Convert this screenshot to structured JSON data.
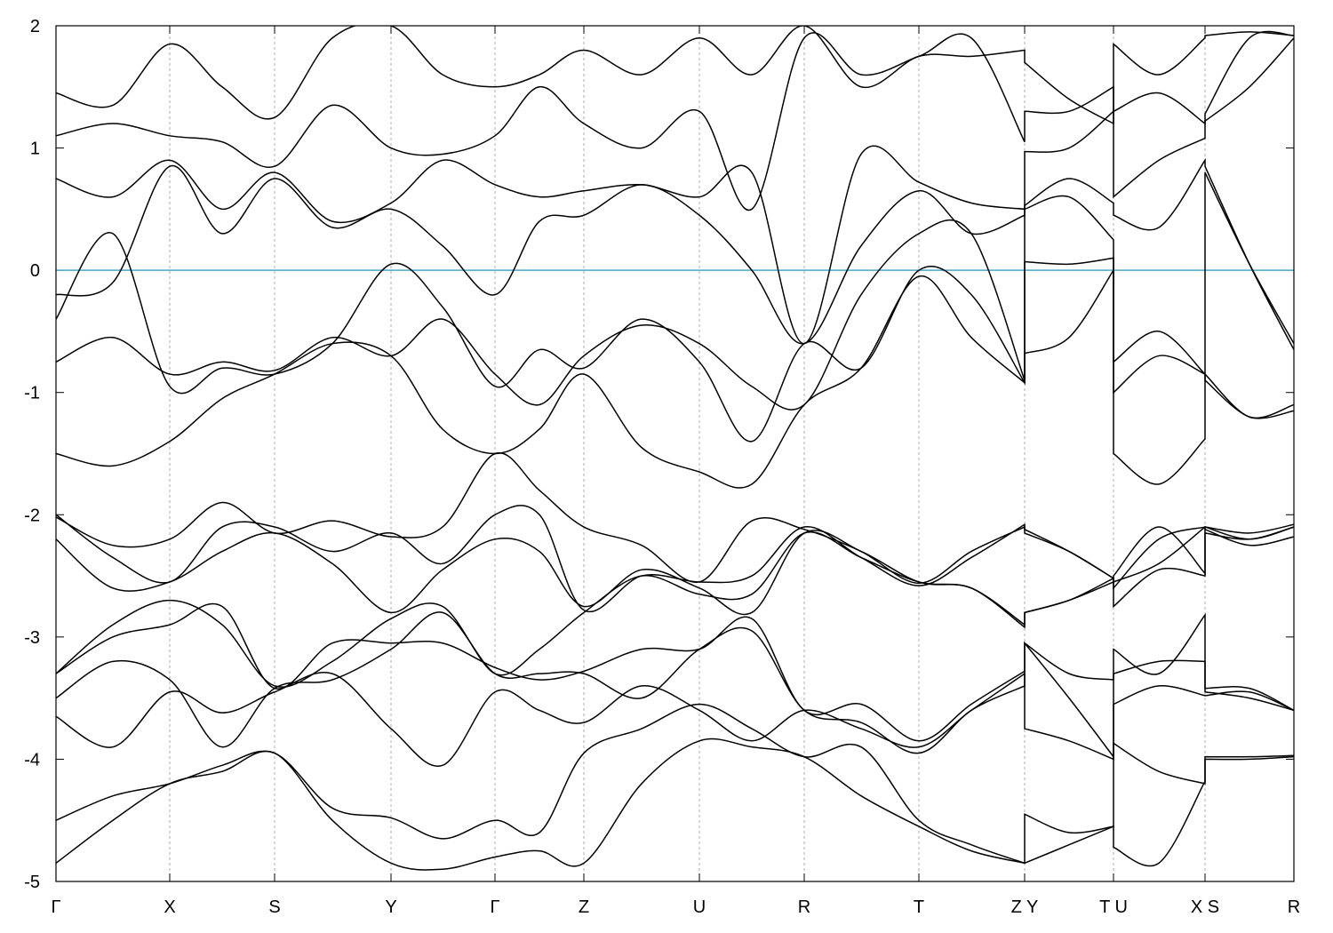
{
  "chart_data": {
    "type": "line",
    "x": [
      0,
      64,
      128,
      187,
      246,
      311,
      377,
      435,
      494,
      544,
      594,
      659,
      724,
      783,
      842,
      906,
      971,
      1030,
      1090,
      1090,
      1140,
      1190,
      1190,
      1241,
      1293,
      1293,
      1343,
      1393
    ],
    "xlim": [
      0,
      1393
    ],
    "xticks": [
      {
        "value": 0,
        "label": "Γ"
      },
      {
        "value": 128,
        "label": "X"
      },
      {
        "value": 246,
        "label": "S"
      },
      {
        "value": 377,
        "label": "Y"
      },
      {
        "value": 494,
        "label": "Γ"
      },
      {
        "value": 594,
        "label": "Z"
      },
      {
        "value": 724,
        "label": "U"
      },
      {
        "value": 842,
        "label": "R"
      },
      {
        "value": 971,
        "label": "T"
      },
      {
        "value": 1090,
        "label": "Z Y"
      },
      {
        "value": 1190,
        "label": "T U"
      },
      {
        "value": 1293,
        "label": "X S"
      },
      {
        "value": 1393,
        "label": "R"
      }
    ],
    "ylim": [
      -5,
      2
    ],
    "yticks": [
      2,
      1,
      0,
      -1,
      -2,
      -3,
      -4,
      -5
    ],
    "fermi_level": 0,
    "fermi_color": "#4aa8c8",
    "grid": true,
    "series": [
      {
        "color": "#000000",
        "values": [
          -4.85,
          -4.5,
          -4.2,
          -4.1,
          -3.95,
          -4.5,
          -4.85,
          -4.9,
          -4.8,
          -4.75,
          -4.85,
          -4.2,
          -3.85,
          -3.9,
          -3.98,
          -4.3,
          -4.55,
          -4.75,
          -4.85,
          -4.85,
          -4.7,
          -4.55,
          -4.72,
          -4.85,
          -4.18,
          -4.0,
          -4.0,
          -3.98
        ]
      },
      {
        "color": "#000000",
        "values": [
          -4.5,
          -4.3,
          -4.2,
          -4.05,
          -3.95,
          -4.4,
          -4.48,
          -4.65,
          -4.5,
          -4.6,
          -3.95,
          -3.75,
          -3.55,
          -3.75,
          -3.98,
          -3.9,
          -4.5,
          -4.7,
          -4.85,
          -4.45,
          -4.6,
          -4.55,
          -3.87,
          -4.1,
          -4.2,
          -3.98,
          -3.98,
          -3.97
        ]
      },
      {
        "color": "#000000",
        "values": [
          -3.65,
          -3.9,
          -3.45,
          -3.62,
          -3.45,
          -3.3,
          -3.75,
          -4.05,
          -3.45,
          -3.6,
          -3.7,
          -3.4,
          -3.6,
          -3.85,
          -3.6,
          -3.75,
          -3.9,
          -3.6,
          -3.3,
          -3.75,
          -3.85,
          -4.0,
          -3.55,
          -3.4,
          -3.48,
          -3.48,
          -3.45,
          -3.6
        ]
      },
      {
        "color": "#000000",
        "values": [
          -3.5,
          -3.2,
          -3.35,
          -3.9,
          -3.42,
          -3.35,
          -3.1,
          -2.8,
          -3.3,
          -3.3,
          -3.3,
          -3.5,
          -3.1,
          -2.95,
          -3.6,
          -3.7,
          -3.95,
          -3.6,
          -3.4,
          -3.05,
          -3.5,
          -3.98,
          -3.3,
          -3.2,
          -3.2,
          -3.42,
          -3.42,
          -3.6
        ]
      },
      {
        "color": "#000000",
        "values": [
          -3.3,
          -3.0,
          -2.9,
          -2.75,
          -3.42,
          -3.05,
          -3.05,
          -3.05,
          -3.25,
          -3.35,
          -3.28,
          -3.1,
          -3.1,
          -2.85,
          -3.6,
          -3.55,
          -3.85,
          -3.55,
          -3.28,
          -3.05,
          -3.3,
          -3.35,
          -3.1,
          -3.3,
          -2.82,
          -3.45,
          -3.5,
          -3.6
        ]
      },
      {
        "color": "#000000",
        "values": [
          -3.3,
          -2.9,
          -2.7,
          -2.9,
          -3.4,
          -3.2,
          -2.85,
          -2.75,
          -3.3,
          -3.1,
          -2.8,
          -2.5,
          -2.65,
          -2.65,
          -2.15,
          -2.35,
          -2.55,
          -2.6,
          -2.9,
          -2.8,
          -2.7,
          -2.55,
          -2.75,
          -2.45,
          -2.5,
          -2.15,
          -2.2,
          -2.1
        ]
      },
      {
        "color": "#000000",
        "values": [
          -2.2,
          -2.6,
          -2.55,
          -2.3,
          -2.15,
          -2.4,
          -2.8,
          -2.45,
          -2.2,
          -2.3,
          -2.75,
          -2.45,
          -2.6,
          -2.8,
          -2.15,
          -2.3,
          -2.55,
          -2.6,
          -2.92,
          -2.8,
          -2.7,
          -2.52,
          -2.6,
          -2.2,
          -2.1,
          -2.12,
          -2.25,
          -2.18
        ]
      },
      {
        "color": "#000000",
        "values": [
          -2.0,
          -2.35,
          -2.55,
          -2.1,
          -2.1,
          -2.3,
          -2.15,
          -2.4,
          -2.0,
          -2.0,
          -2.78,
          -2.5,
          -2.55,
          -2.5,
          -2.1,
          -2.35,
          -2.58,
          -2.35,
          -2.08,
          -2.15,
          -2.3,
          -2.52,
          -2.55,
          -2.4,
          -2.1,
          -2.1,
          -2.2,
          -2.1
        ]
      },
      {
        "color": "#000000",
        "values": [
          -2.02,
          -2.25,
          -2.2,
          -1.9,
          -2.15,
          -2.05,
          -2.18,
          -2.1,
          -1.5,
          -1.8,
          -2.1,
          -2.25,
          -2.55,
          -2.05,
          -2.12,
          -2.3,
          -2.56,
          -2.3,
          -2.1,
          -2.12,
          -2.3,
          -2.52,
          -2.5,
          -2.1,
          -2.48,
          -2.1,
          -2.15,
          -2.08
        ]
      },
      {
        "color": "#000000",
        "values": [
          -1.5,
          -1.6,
          -1.4,
          -1.05,
          -0.85,
          -0.6,
          -0.7,
          -1.3,
          -1.5,
          -1.3,
          -0.85,
          -1.45,
          -1.65,
          -1.75,
          -1.1,
          -0.8,
          -0.05,
          -0.55,
          -0.92,
          -0.68,
          -0.55,
          0.0,
          -1.5,
          -1.75,
          -1.38,
          -0.85,
          -1.2,
          -1.1
        ]
      },
      {
        "color": "#000000",
        "values": [
          -0.75,
          -0.55,
          -0.85,
          -0.75,
          -0.82,
          -0.55,
          -0.7,
          -0.4,
          -0.85,
          -1.1,
          -0.7,
          -0.45,
          -0.6,
          -0.95,
          -1.1,
          -0.2,
          0.3,
          0.3,
          -0.9,
          0.07,
          0.05,
          0.1,
          -1.0,
          -0.7,
          -0.85,
          -0.9,
          -1.2,
          -1.15
        ]
      },
      {
        "color": "#000000",
        "values": [
          -0.4,
          0.3,
          -0.95,
          -0.8,
          -0.85,
          -0.6,
          0.05,
          -0.3,
          -0.95,
          -0.65,
          -0.8,
          -0.4,
          -0.75,
          -1.4,
          -0.6,
          -0.8,
          0.0,
          -0.2,
          -0.92,
          0.5,
          0.6,
          0.25,
          -0.75,
          -0.5,
          -0.85,
          0.8,
          0.05,
          -0.6
        ]
      },
      {
        "color": "#000000",
        "values": [
          -0.2,
          -0.1,
          0.85,
          0.3,
          0.75,
          0.35,
          0.5,
          0.2,
          -0.2,
          0.4,
          0.45,
          0.7,
          0.45,
          0.0,
          -0.6,
          0.2,
          0.65,
          0.3,
          0.45,
          0.53,
          0.75,
          0.55,
          0.45,
          0.35,
          0.9,
          0.85,
          0.05,
          -0.65
        ]
      },
      {
        "color": "#000000",
        "values": [
          0.75,
          0.6,
          0.9,
          0.5,
          0.8,
          0.4,
          0.55,
          0.9,
          0.7,
          0.6,
          0.65,
          0.7,
          0.6,
          0.8,
          -0.6,
          0.95,
          0.72,
          0.55,
          0.5,
          0.97,
          1.0,
          1.3,
          0.6,
          0.9,
          1.08,
          1.22,
          1.5,
          1.9
        ]
      },
      {
        "color": "#000000",
        "values": [
          1.1,
          1.2,
          1.1,
          1.05,
          0.85,
          1.35,
          1.0,
          0.95,
          1.1,
          1.5,
          1.2,
          1.0,
          1.3,
          0.5,
          1.9,
          1.6,
          1.75,
          1.9,
          1.05,
          1.3,
          1.3,
          1.5,
          1.3,
          1.45,
          1.2,
          1.28,
          1.9,
          1.92
        ]
      },
      {
        "color": "#000000",
        "values": [
          1.45,
          1.35,
          1.85,
          1.5,
          1.25,
          1.9,
          2.0,
          1.6,
          1.5,
          1.6,
          1.8,
          1.6,
          1.9,
          1.6,
          2.0,
          1.5,
          1.75,
          1.75,
          1.8,
          1.7,
          1.4,
          1.2,
          1.85,
          1.6,
          1.9,
          1.92,
          1.95,
          1.92
        ]
      }
    ]
  }
}
